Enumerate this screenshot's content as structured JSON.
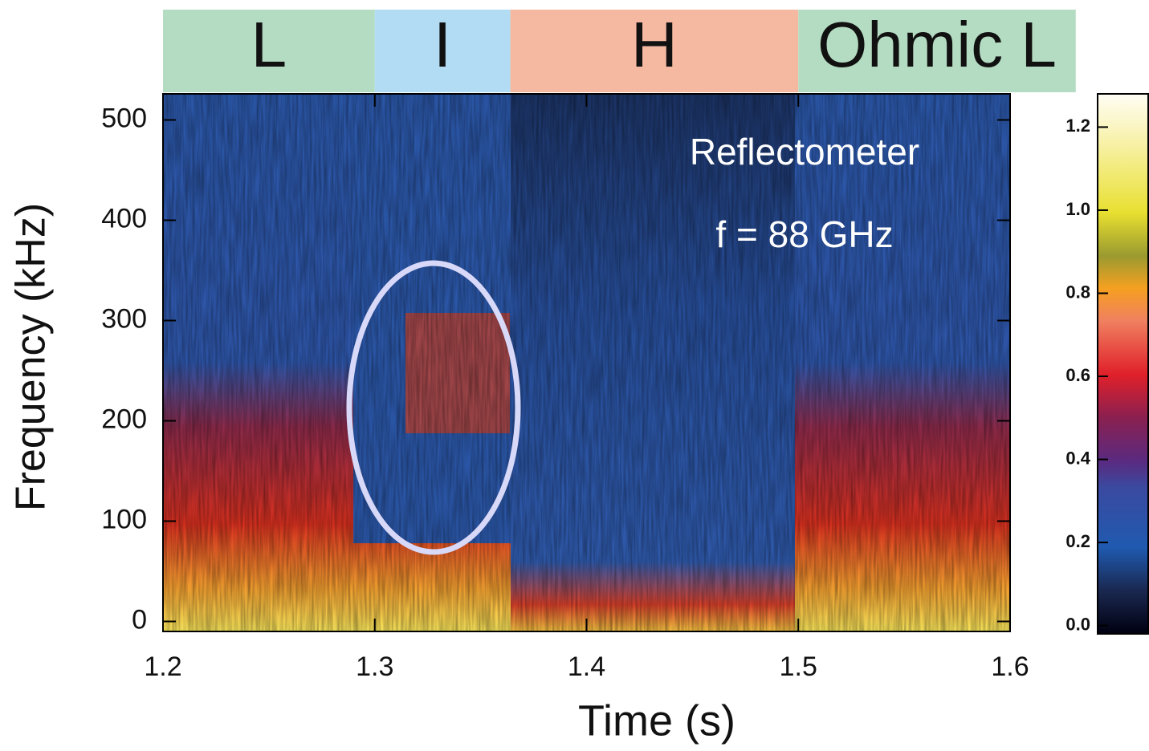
{
  "chart_data": {
    "type": "spectrogram",
    "x_label": "Time (s)",
    "y_label": "Frequency (kHz)",
    "xlim": [
      1.2,
      1.6
    ],
    "xticks": [
      1.2,
      1.3,
      1.4,
      1.5,
      1.6
    ],
    "ylim": [
      -10,
      526
    ],
    "yticks": [
      0,
      100,
      200,
      300,
      400,
      500
    ],
    "phases": [
      {
        "label": "L",
        "start": 1.2,
        "end": 1.3,
        "color": "#b4dcc2"
      },
      {
        "label": "I",
        "start": 1.3,
        "end": 1.364,
        "color": "#b1dcf3"
      },
      {
        "label": "H",
        "start": 1.364,
        "end": 1.5,
        "color": "#f5b9a2"
      },
      {
        "label": "Ohmic L",
        "start": 1.5,
        "end": 1.631,
        "color": "#b4dcc2"
      }
    ],
    "annotations": [
      "Reflectometer",
      "f = 88 GHz"
    ],
    "colorbar": {
      "lim": [
        -0.02,
        1.28
      ],
      "ticks": [
        {
          "value": 0,
          "label": "0.0"
        },
        0.2,
        0.4,
        0.6,
        0.8,
        {
          "value": 1,
          "label": "1.0"
        },
        1.2
      ]
    }
  }
}
